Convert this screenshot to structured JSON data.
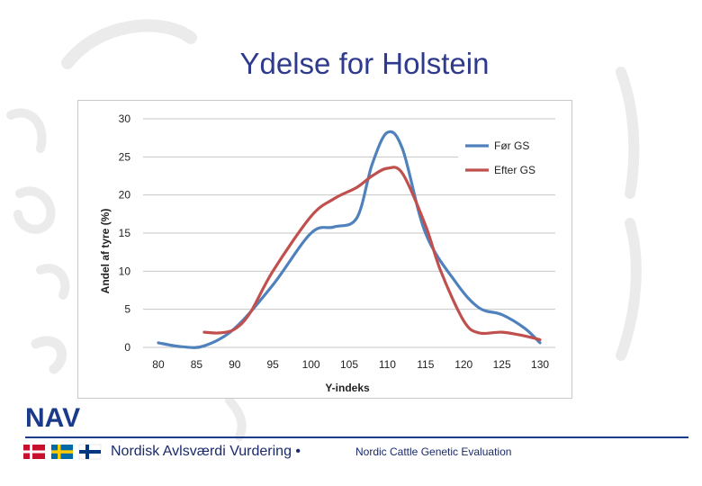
{
  "slide": {
    "title": "Ydelse for Holstein",
    "logo_text": "NAV",
    "footer_left": "Nordisk Avlsværdi Vurdering •",
    "footer_right": "Nordic Cattle Genetic Evaluation",
    "accent_color": "#1a3a8a"
  },
  "chart_data": {
    "type": "line",
    "title": "",
    "xlabel": "Y-indeks",
    "ylabel": "Andel af tyre (%)",
    "xlim": [
      78,
      132
    ],
    "ylim": [
      0,
      30
    ],
    "xticks": [
      "80",
      "85",
      "90",
      "95",
      "100",
      "105",
      "110",
      "115",
      "120",
      "125",
      "130"
    ],
    "yticks": [
      "0",
      "5",
      "10",
      "15",
      "20",
      "25",
      "30"
    ],
    "grid": true,
    "legend_position": "top-right",
    "series": [
      {
        "name": "Før GS",
        "color": "#4f81bd",
        "x": [
          80,
          83,
          86,
          90,
          95,
          100,
          103,
          106,
          108,
          110,
          112,
          115,
          119,
          122,
          125,
          128,
          130
        ],
        "values": [
          0.6,
          0.1,
          0.2,
          2.5,
          8.2,
          15.0,
          15.8,
          17.0,
          24.0,
          28.2,
          26.0,
          15.0,
          8.5,
          5.2,
          4.3,
          2.5,
          0.6
        ]
      },
      {
        "name": "Efter GS",
        "color": "#c0504d",
        "x": [
          86,
          88,
          90,
          92,
          95,
          100,
          103,
          106,
          108,
          110,
          112,
          115,
          117,
          120,
          122,
          125,
          128,
          130
        ],
        "values": [
          2.0,
          1.9,
          2.4,
          4.5,
          10.0,
          17.2,
          19.5,
          21.0,
          22.5,
          23.5,
          22.8,
          16.0,
          10.0,
          3.5,
          1.9,
          2.0,
          1.5,
          1.0
        ]
      }
    ]
  }
}
